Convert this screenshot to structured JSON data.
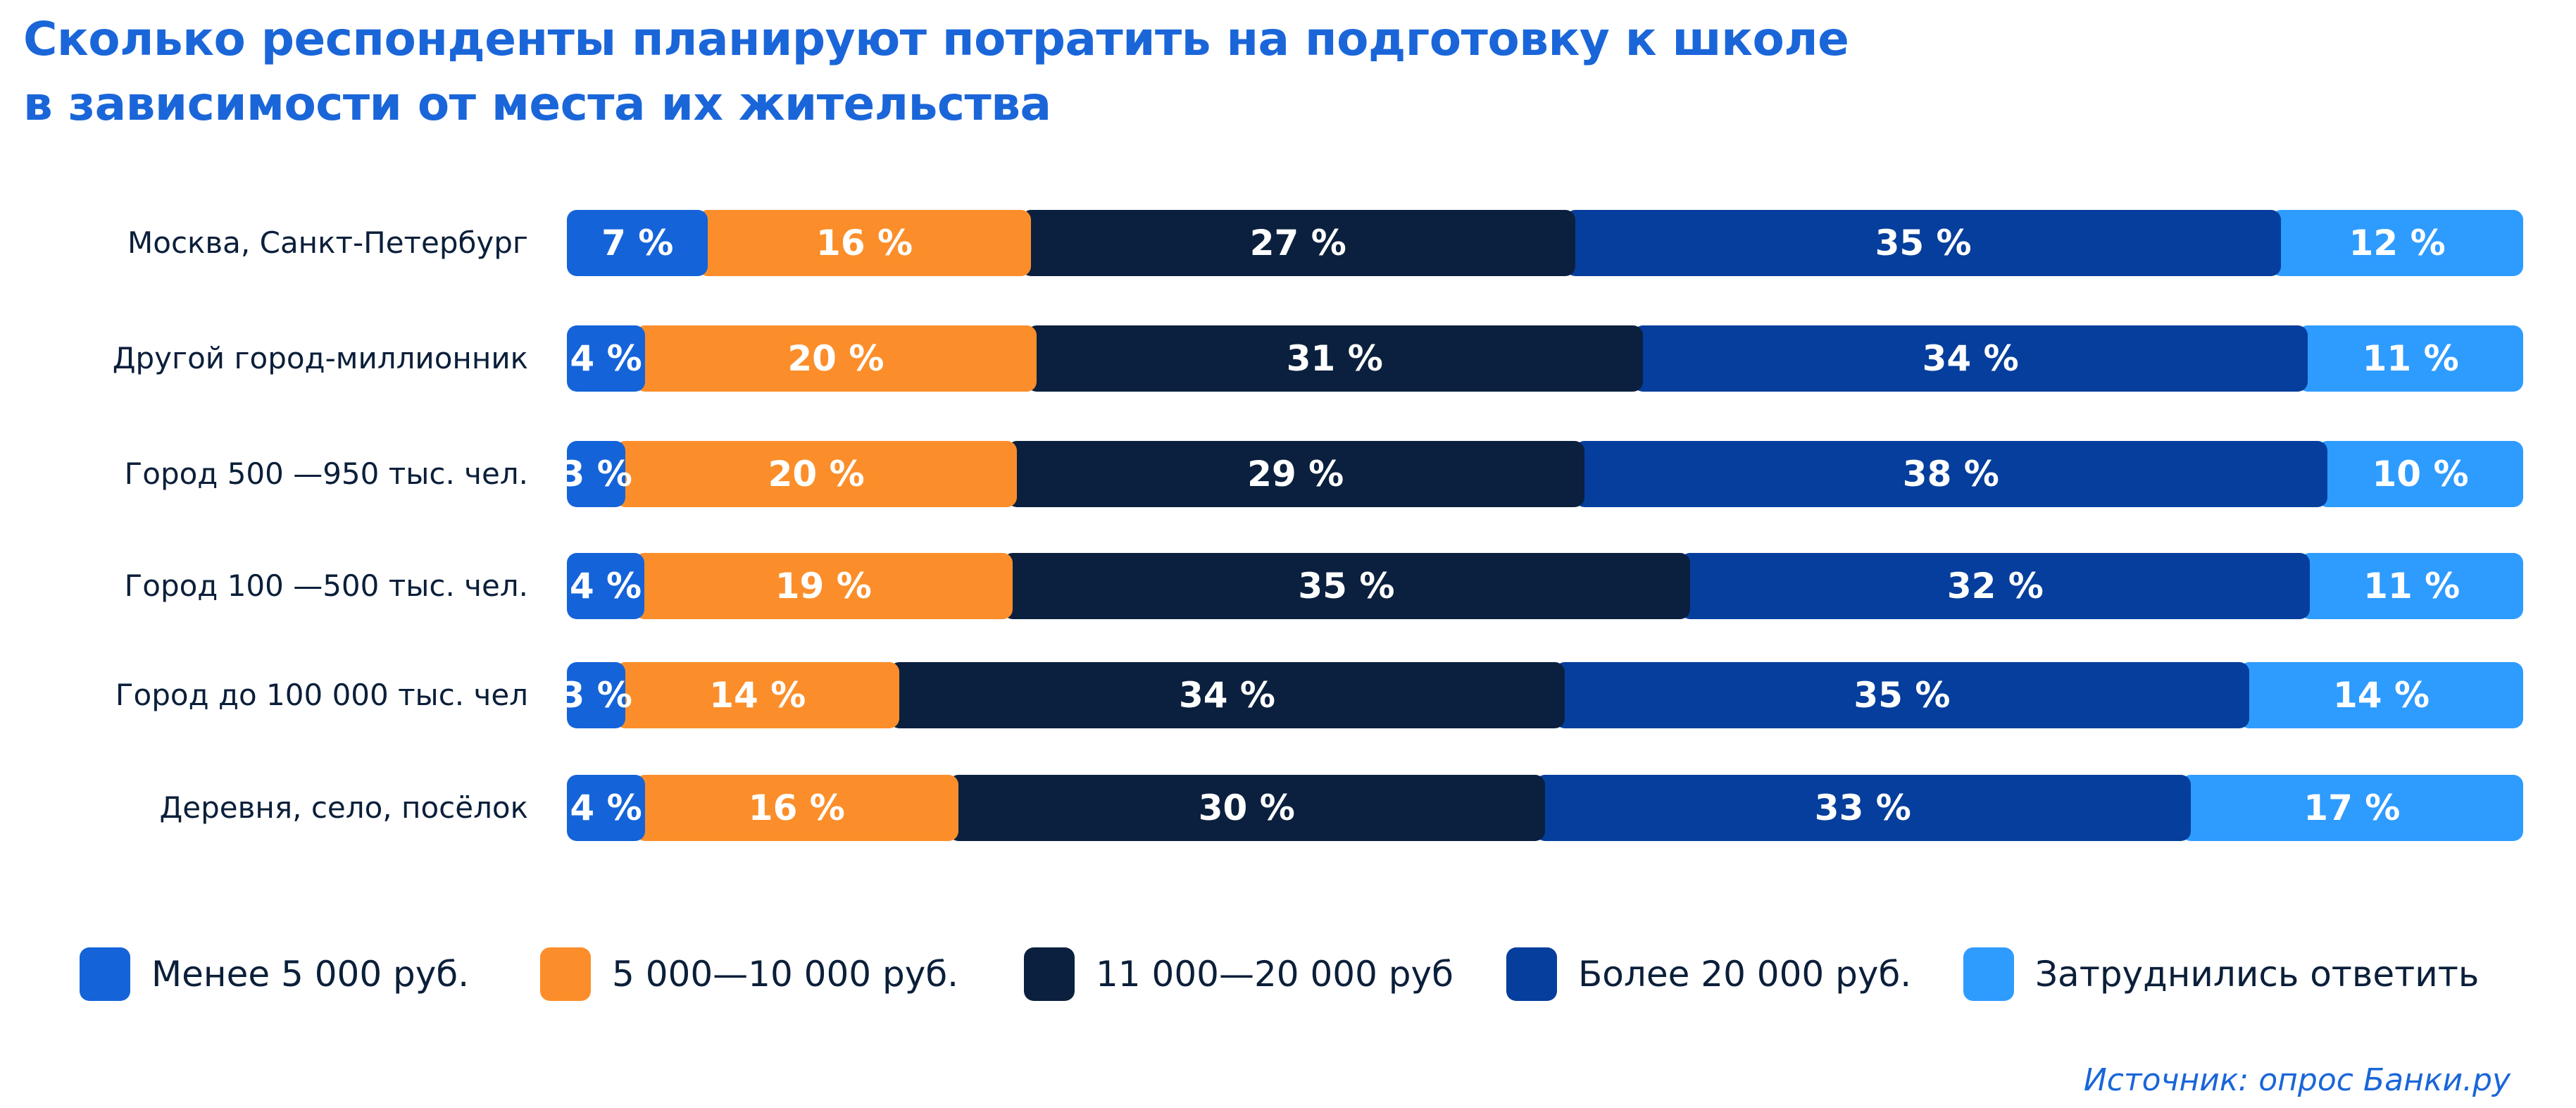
{
  "chart_data": {
    "type": "bar",
    "orientation": "horizontal",
    "stacked": true,
    "title": "Сколько респонденты планируют потратить на подготовку к школе в зависимости от места их жительства",
    "title_lines": [
      "Сколько респонденты планируют потратить на подготовку к школе",
      "в зависимости от места их жительства"
    ],
    "categories": [
      "Москва, Санкт-Петербург",
      "Другой город-миллионник",
      "Город 500 —950 тыс. чел.",
      "Город 100 —500 тыс. чел.",
      "Город до 100 000 тыс. чел",
      "Деревня, село, посёлок"
    ],
    "series": [
      {
        "name": "Менее 5 000 руб.",
        "color": "#1463d9",
        "values": [
          7,
          4,
          3,
          4,
          3,
          4
        ]
      },
      {
        "name": "5 000—10 000 руб.",
        "color": "#fb8e2a",
        "values": [
          16,
          20,
          20,
          19,
          14,
          16
        ]
      },
      {
        "name": "11 000—20 000 руб",
        "color": "#0b203e",
        "values": [
          27,
          31,
          29,
          35,
          34,
          30
        ]
      },
      {
        "name": "Более 20 000 руб.",
        "color": "#053e9c",
        "values": [
          35,
          34,
          38,
          32,
          35,
          33
        ]
      },
      {
        "name": "Затруднились ответить",
        "color": "#2e9bff",
        "values": [
          12,
          11,
          10,
          11,
          14,
          17
        ]
      }
    ],
    "unit": "%",
    "legend_position": "bottom",
    "grid": false,
    "source": "Источник: опрос Банки.ру"
  }
}
